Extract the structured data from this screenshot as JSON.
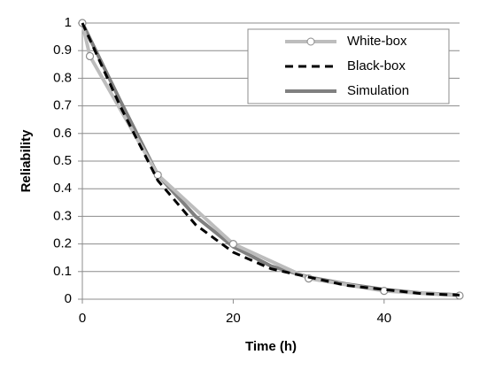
{
  "chart_data": {
    "type": "line",
    "y_label": "Reliability",
    "x_label": "Time (h)",
    "xlim": [
      0,
      50
    ],
    "xticks": [
      0,
      20,
      40
    ],
    "ylim": [
      0,
      1
    ],
    "yticks": [
      0,
      0.1,
      0.2,
      0.3,
      0.4,
      0.5,
      0.6,
      0.7,
      0.8,
      0.9,
      1
    ],
    "grid": true,
    "legend": "upper right",
    "series": [
      {
        "name": "White-box",
        "color": "#bdbdbd",
        "dash": false,
        "marker": true,
        "x": [
          0,
          1,
          10,
          20,
          30,
          40,
          50
        ],
        "values": [
          1.0,
          0.88,
          0.45,
          0.2,
          0.075,
          0.03,
          0.013
        ]
      },
      {
        "name": "Black-box",
        "color": "#000000",
        "dash": true,
        "marker": false,
        "x": [
          0,
          5,
          10,
          15,
          20,
          25,
          30,
          35,
          40,
          45,
          50
        ],
        "values": [
          1.0,
          0.7,
          0.43,
          0.27,
          0.17,
          0.11,
          0.08,
          0.05,
          0.035,
          0.02,
          0.015
        ]
      },
      {
        "name": "Simulation",
        "color": "#808080",
        "dash": false,
        "marker": false,
        "x": [
          0,
          5,
          10,
          15,
          20,
          25,
          30,
          35,
          40,
          45,
          50
        ],
        "values": [
          1.0,
          0.72,
          0.45,
          0.3,
          0.19,
          0.12,
          0.08,
          0.055,
          0.035,
          0.022,
          0.015
        ]
      }
    ]
  }
}
